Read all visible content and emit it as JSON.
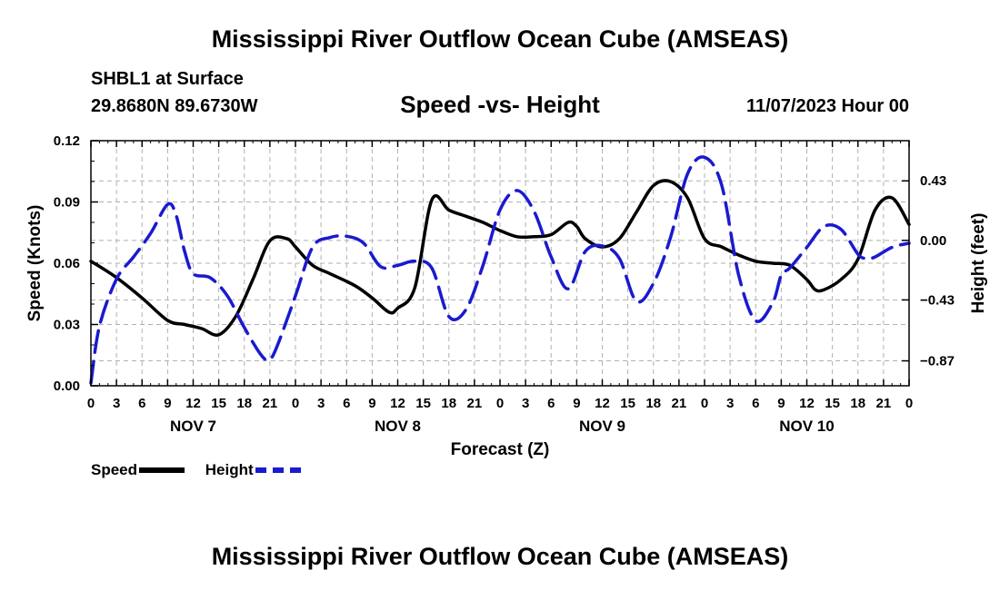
{
  "header": {
    "title": "Mississippi River Outflow Ocean Cube (AMSEAS)",
    "station": "SHBL1 at Surface",
    "coords": "29.8680N  89.6730W",
    "subtitle": "Speed -vs- Height",
    "datetime": "11/07/2023 Hour 00"
  },
  "footer": {
    "title": "Mississippi River Outflow Ocean Cube (AMSEAS)"
  },
  "chart_data": {
    "type": "line",
    "xlabel": "Forecast (Z)",
    "ylabel": "Speed (Knots)",
    "y2label": "Height (feet)",
    "x_range_hours": [
      0,
      96
    ],
    "ylim": [
      0,
      0.12
    ],
    "y2lim": [
      -1.05,
      0.72
    ],
    "grid": true,
    "yticks": [
      "0.00",
      "0.03",
      "0.06",
      "0.09",
      "0.12"
    ],
    "y2ticks": [
      {
        "value": -0.87,
        "label": "−0.87"
      },
      {
        "value": -0.43,
        "label": "−0.43"
      },
      {
        "value": 0.0,
        "label": "0.00"
      },
      {
        "value": 0.43,
        "label": "0.43"
      }
    ],
    "xtick_labels": [
      "0",
      "3",
      "6",
      "9",
      "12",
      "15",
      "18",
      "21",
      "0",
      "3",
      "6",
      "9",
      "12",
      "15",
      "18",
      "21",
      "0",
      "3",
      "6",
      "9",
      "12",
      "15",
      "18",
      "21",
      "0",
      "3",
      "6",
      "9",
      "12",
      "15",
      "18",
      "21",
      "0"
    ],
    "day_labels": [
      {
        "label": "NOV 7",
        "hour": 12
      },
      {
        "label": "NOV 8",
        "hour": 36
      },
      {
        "label": "NOV 9",
        "hour": 60
      },
      {
        "label": "NOV 10",
        "hour": 84
      }
    ],
    "legend": [
      {
        "name": "Speed",
        "color": "#000000",
        "style": "solid"
      },
      {
        "name": "Height",
        "color": "#1a1acf",
        "style": "dashed"
      }
    ],
    "series": [
      {
        "name": "Speed",
        "axis": "left",
        "color": "#000000",
        "x": [
          0,
          3,
          6,
          9,
          11,
          13,
          15,
          17,
          19,
          21,
          23,
          24,
          26,
          28,
          31,
          33,
          35,
          36,
          38,
          40,
          42,
          44,
          46,
          48,
          50,
          52,
          54,
          56,
          57,
          58,
          60,
          62,
          64,
          66,
          68,
          70,
          72,
          74,
          76,
          78,
          80,
          82,
          84,
          85,
          86,
          88,
          90,
          92,
          94,
          96
        ],
        "y": [
          0.061,
          0.053,
          0.043,
          0.032,
          0.03,
          0.028,
          0.025,
          0.034,
          0.052,
          0.071,
          0.072,
          0.068,
          0.059,
          0.055,
          0.049,
          0.043,
          0.036,
          0.038,
          0.048,
          0.091,
          0.086,
          0.083,
          0.08,
          0.076,
          0.073,
          0.073,
          0.074,
          0.08,
          0.078,
          0.072,
          0.068,
          0.072,
          0.085,
          0.098,
          0.1,
          0.092,
          0.072,
          0.068,
          0.064,
          0.061,
          0.06,
          0.059,
          0.052,
          0.047,
          0.047,
          0.052,
          0.062,
          0.086,
          0.092,
          0.079
        ]
      },
      {
        "name": "Height",
        "axis": "right",
        "color": "#1a1acf",
        "x": [
          0,
          1,
          3,
          5,
          7,
          9,
          10,
          11,
          12,
          14,
          16,
          18,
          20,
          21,
          22,
          24,
          26,
          28,
          30,
          32,
          34,
          36,
          38,
          40,
          42,
          44,
          46,
          48,
          50,
          52,
          54,
          56,
          58,
          60,
          62,
          64,
          66,
          68,
          70,
          72,
          74,
          76,
          78,
          80,
          81,
          82,
          84,
          86,
          88,
          90,
          91,
          92,
          94,
          96
        ],
        "y": [
          -1.03,
          -0.62,
          -0.28,
          -0.12,
          0.05,
          0.26,
          0.18,
          -0.08,
          -0.24,
          -0.27,
          -0.4,
          -0.63,
          -0.83,
          -0.86,
          -0.74,
          -0.4,
          -0.05,
          0.02,
          0.03,
          -0.02,
          -0.19,
          -0.18,
          -0.15,
          -0.2,
          -0.55,
          -0.5,
          -0.18,
          0.22,
          0.36,
          0.21,
          -0.12,
          -0.35,
          -0.08,
          -0.04,
          -0.13,
          -0.44,
          -0.31,
          0.02,
          0.48,
          0.6,
          0.4,
          -0.25,
          -0.58,
          -0.45,
          -0.25,
          -0.2,
          -0.05,
          0.1,
          0.08,
          -0.1,
          -0.13,
          -0.12,
          -0.05,
          -0.02
        ]
      }
    ]
  }
}
